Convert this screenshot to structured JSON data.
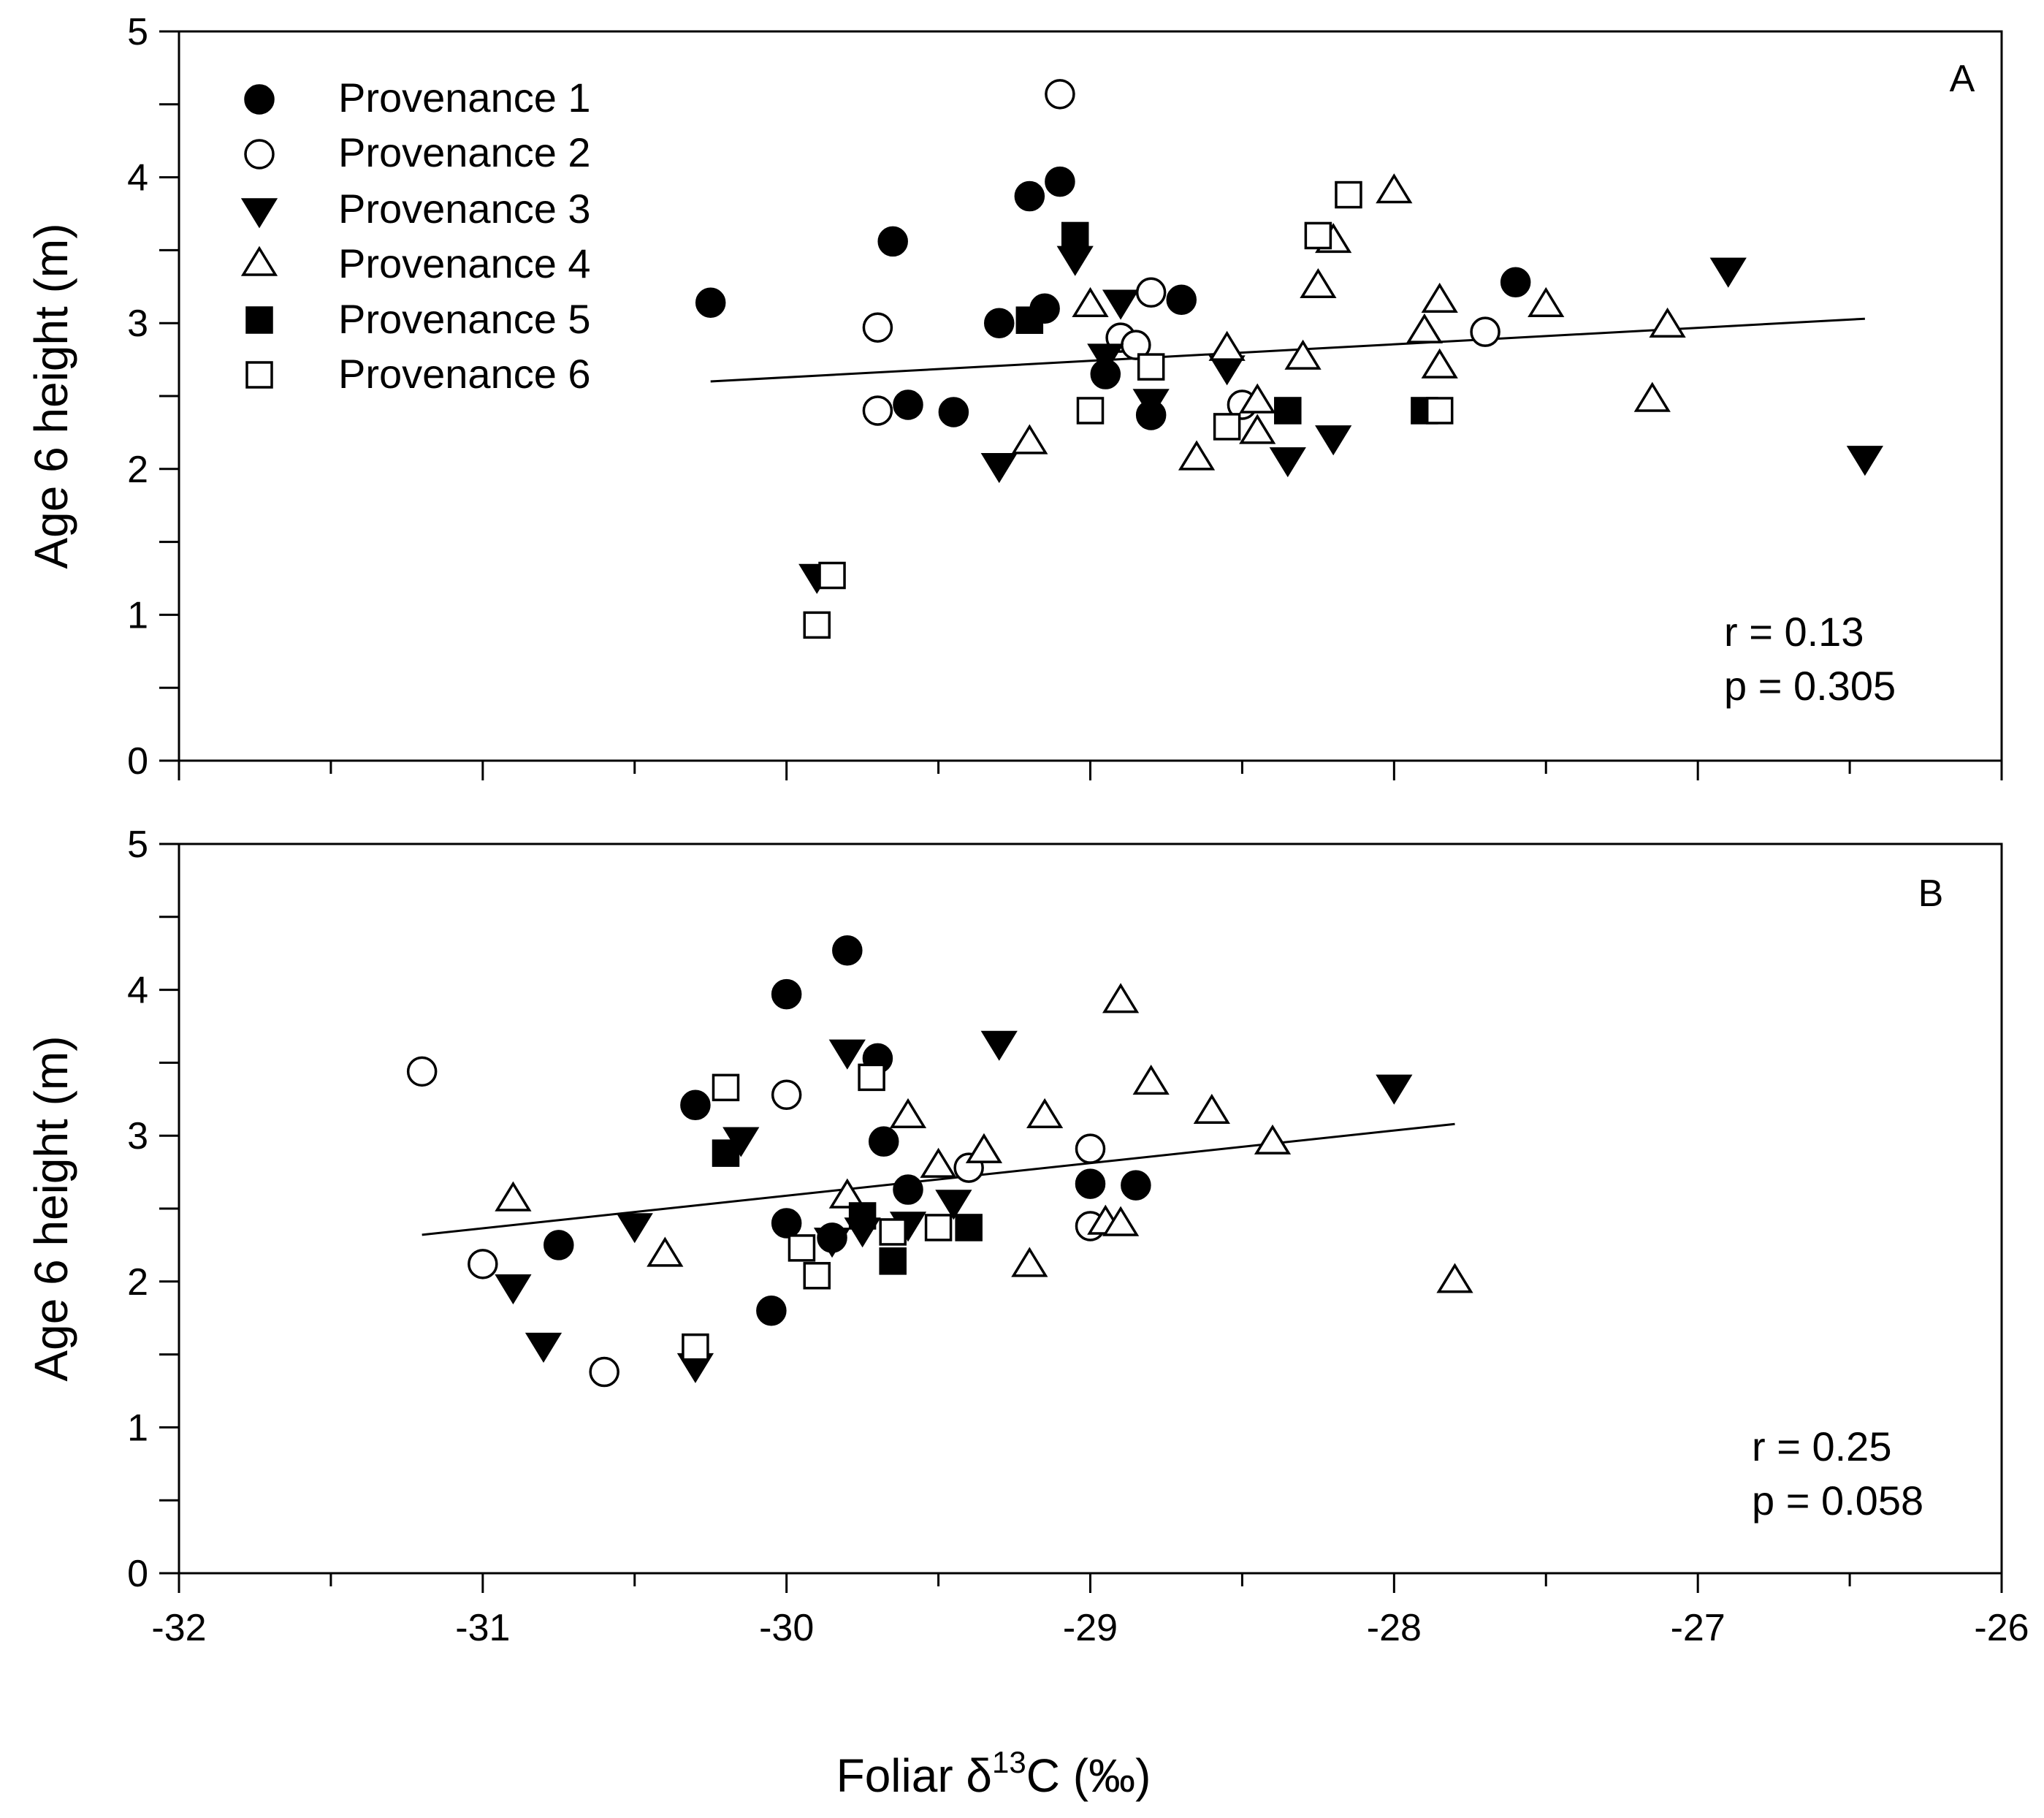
{
  "chart_data": {
    "type": "scatter",
    "xlabel": "Foliar δ13C (‰)",
    "xlabel_parts": {
      "before": "Foliar δ",
      "superscript": "13",
      "after": "C (‰)"
    },
    "xlim": [
      -32,
      -26
    ],
    "xticks": [
      -32,
      -31,
      -30,
      -29,
      -28,
      -27,
      -26
    ],
    "legend_position": "top-left",
    "legend": [
      {
        "name": "Provenance 1",
        "marker": "filled-circle"
      },
      {
        "name": "Provenance 2",
        "marker": "open-circle"
      },
      {
        "name": "Provenance 3",
        "marker": "filled-triangle-down"
      },
      {
        "name": "Provenance 4",
        "marker": "open-triangle-up"
      },
      {
        "name": "Provenance 5",
        "marker": "filled-square"
      },
      {
        "name": "Provenance 6",
        "marker": "open-square"
      }
    ],
    "panels": [
      {
        "label": "A",
        "ylabel": "Age 6 height (m)",
        "ylim": [
          0,
          5
        ],
        "yticks": [
          0,
          1,
          2,
          3,
          4,
          5
        ],
        "stats": {
          "r": "r = 0.13",
          "p": "p = 0.305"
        },
        "fit": {
          "x": [
            -30.25,
            -26.45
          ],
          "y": [
            2.6,
            3.03
          ]
        },
        "series": [
          {
            "name": "Provenance 1",
            "points": [
              [
                -30.25,
                3.14
              ],
              [
                -29.65,
                3.56
              ],
              [
                -29.6,
                2.44
              ],
              [
                -29.45,
                2.39
              ],
              [
                -29.3,
                3.0
              ],
              [
                -29.2,
                3.87
              ],
              [
                -29.1,
                3.97
              ],
              [
                -29.15,
                3.1
              ],
              [
                -28.95,
                2.65
              ],
              [
                -28.8,
                2.37
              ],
              [
                -28.7,
                3.16
              ],
              [
                -27.6,
                3.28
              ]
            ]
          },
          {
            "name": "Provenance 2",
            "points": [
              [
                -29.7,
                2.97
              ],
              [
                -29.7,
                2.4
              ],
              [
                -29.1,
                4.57
              ],
              [
                -28.9,
                2.9
              ],
              [
                -28.8,
                3.21
              ],
              [
                -28.85,
                2.85
              ],
              [
                -28.5,
                2.44
              ],
              [
                -27.7,
                2.94
              ]
            ]
          },
          {
            "name": "Provenance 3",
            "points": [
              [
                -29.9,
                1.27
              ],
              [
                -29.3,
                2.03
              ],
              [
                -29.05,
                3.45
              ],
              [
                -28.95,
                2.78
              ],
              [
                -28.9,
                3.15
              ],
              [
                -28.8,
                2.47
              ],
              [
                -28.55,
                2.7
              ],
              [
                -28.35,
                2.07
              ],
              [
                -28.2,
                2.22
              ],
              [
                -26.9,
                3.37
              ],
              [
                -26.45,
                2.08
              ]
            ]
          },
          {
            "name": "Provenance 4",
            "points": [
              [
                -29.2,
                2.18
              ],
              [
                -29.0,
                3.12
              ],
              [
                -28.65,
                2.07
              ],
              [
                -28.55,
                2.82
              ],
              [
                -28.45,
                2.46
              ],
              [
                -28.45,
                2.25
              ],
              [
                -28.3,
                2.76
              ],
              [
                -28.25,
                3.25
              ],
              [
                -28.2,
                3.56
              ],
              [
                -28.0,
                3.9
              ],
              [
                -27.9,
                2.94
              ],
              [
                -27.85,
                3.15
              ],
              [
                -27.85,
                2.7
              ],
              [
                -27.5,
                3.12
              ],
              [
                -27.15,
                2.47
              ],
              [
                -27.1,
                2.98
              ]
            ]
          },
          {
            "name": "Provenance 5",
            "points": [
              [
                -29.2,
                3.02
              ],
              [
                -29.05,
                3.6
              ],
              [
                -28.35,
                2.4
              ],
              [
                -27.9,
                2.4
              ]
            ]
          },
          {
            "name": "Provenance 6",
            "points": [
              [
                -29.9,
                0.93
              ],
              [
                -29.85,
                1.27
              ],
              [
                -29.0,
                2.4
              ],
              [
                -28.8,
                2.7
              ],
              [
                -28.55,
                2.29
              ],
              [
                -28.25,
                3.6
              ],
              [
                -28.15,
                3.88
              ],
              [
                -27.85,
                2.4
              ]
            ]
          }
        ]
      },
      {
        "label": "B",
        "ylabel": "Age 6 height (m)",
        "ylim": [
          0,
          5
        ],
        "yticks": [
          0,
          1,
          2,
          3,
          4,
          5
        ],
        "stats": {
          "r": "r = 0.25",
          "p": "p = 0.058"
        },
        "fit": {
          "x": [
            -31.2,
            -27.8
          ],
          "y": [
            2.32,
            3.08
          ]
        },
        "series": [
          {
            "name": "Provenance 1",
            "points": [
              [
                -30.75,
                2.25
              ],
              [
                -30.3,
                3.21
              ],
              [
                -30.05,
                1.8
              ],
              [
                -30.0,
                2.4
              ],
              [
                -30.0,
                3.97
              ],
              [
                -29.85,
                2.3
              ],
              [
                -29.8,
                4.27
              ],
              [
                -29.7,
                3.53
              ],
              [
                -29.68,
                2.96
              ],
              [
                -29.6,
                2.63
              ],
              [
                -29.0,
                2.67
              ],
              [
                -28.85,
                2.66
              ]
            ]
          },
          {
            "name": "Provenance 2",
            "points": [
              [
                -31.2,
                3.44
              ],
              [
                -31.0,
                2.12
              ],
              [
                -30.6,
                1.38
              ],
              [
                -30.0,
                3.28
              ],
              [
                -29.4,
                2.78
              ],
              [
                -29.0,
                2.91
              ],
              [
                -29.0,
                2.38
              ]
            ]
          },
          {
            "name": "Provenance 3",
            "points": [
              [
                -30.9,
                1.97
              ],
              [
                -30.8,
                1.57
              ],
              [
                -30.5,
                2.39
              ],
              [
                -30.3,
                1.43
              ],
              [
                -30.15,
                2.98
              ],
              [
                -29.85,
                2.29
              ],
              [
                -29.8,
                3.58
              ],
              [
                -29.75,
                2.36
              ],
              [
                -29.6,
                2.4
              ],
              [
                -29.45,
                2.55
              ],
              [
                -29.3,
                3.64
              ],
              [
                -28.0,
                3.34
              ]
            ]
          },
          {
            "name": "Provenance 4",
            "points": [
              [
                -30.9,
                2.56
              ],
              [
                -30.4,
                2.18
              ],
              [
                -29.8,
                2.58
              ],
              [
                -29.6,
                3.13
              ],
              [
                -29.5,
                2.79
              ],
              [
                -29.35,
                2.89
              ],
              [
                -29.2,
                2.11
              ],
              [
                -29.15,
                3.13
              ],
              [
                -28.95,
                2.4
              ],
              [
                -28.9,
                3.92
              ],
              [
                -28.9,
                2.39
              ],
              [
                -28.8,
                3.36
              ],
              [
                -28.6,
                3.16
              ],
              [
                -28.4,
                2.95
              ],
              [
                -27.8,
                2.0
              ]
            ]
          },
          {
            "name": "Provenance 5",
            "points": [
              [
                -30.2,
                2.88
              ],
              [
                -29.75,
                2.45
              ],
              [
                -29.65,
                2.14
              ],
              [
                -29.4,
                2.37
              ]
            ]
          },
          {
            "name": "Provenance 6",
            "points": [
              [
                -30.3,
                1.55
              ],
              [
                -30.2,
                3.33
              ],
              [
                -29.95,
                2.23
              ],
              [
                -29.9,
                2.04
              ],
              [
                -29.72,
                3.4
              ],
              [
                -29.65,
                2.34
              ],
              [
                -29.5,
                2.37
              ]
            ]
          }
        ]
      }
    ]
  }
}
